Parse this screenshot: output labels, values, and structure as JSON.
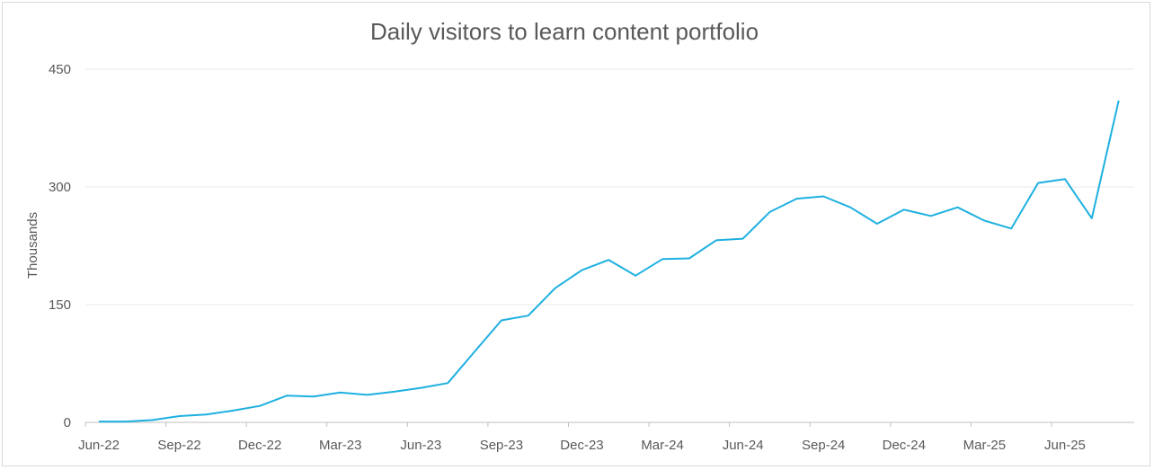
{
  "chart_data": {
    "type": "line",
    "title": "Daily visitors to learn content portfolio",
    "xlabel": "",
    "ylabel": "Thousands",
    "ylim": [
      0,
      450
    ],
    "yticks": [
      0,
      150,
      300,
      450
    ],
    "grid": true,
    "legend": "none",
    "color": "#1eb0e0",
    "x": [
      "Jun-22",
      "Jul-22",
      "Aug-22",
      "Sep-22",
      "Oct-22",
      "Nov-22",
      "Dec-22",
      "Jan-23",
      "Feb-23",
      "Mar-23",
      "Apr-23",
      "May-23",
      "Jun-23",
      "Jul-23",
      "Aug-23",
      "Sep-23",
      "Oct-23",
      "Nov-23",
      "Dec-23",
      "Jan-24",
      "Feb-24",
      "Mar-24",
      "Apr-24",
      "May-24",
      "Jun-24",
      "Jul-24",
      "Aug-24",
      "Sep-24",
      "Oct-24",
      "Nov-24",
      "Dec-24",
      "Jan-25",
      "Feb-25",
      "Mar-25",
      "Apr-25",
      "May-25",
      "Jun-25",
      "Jul-25",
      "Aug-25"
    ],
    "xtick_labels": [
      "Jun-22",
      "Sep-22",
      "Dec-22",
      "Mar-23",
      "Jun-23",
      "Sep-23",
      "Dec-23",
      "Mar-24",
      "Jun-24",
      "Sep-24",
      "Dec-24",
      "Mar-25",
      "Jun-25"
    ],
    "series": [
      {
        "name": "Daily visitors",
        "values": [
          1,
          1,
          3,
          8,
          10,
          15,
          21,
          34,
          33,
          38,
          35,
          39,
          44,
          50,
          90,
          130,
          136,
          171,
          194,
          207,
          187,
          208,
          209,
          232,
          234,
          268,
          285,
          288,
          274,
          253,
          271,
          263,
          274,
          257,
          247,
          305,
          310,
          260,
          410
        ]
      }
    ]
  }
}
